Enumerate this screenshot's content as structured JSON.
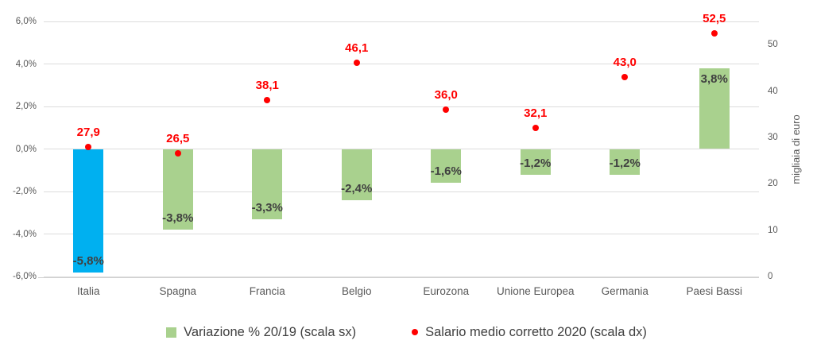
{
  "chart_data": {
    "type": "bar",
    "subtype": "combo-bar-scatter-dual-axis",
    "categories": [
      "Italia",
      "Spagna",
      "Francia",
      "Belgio",
      "Eurozona",
      "Unione Europea",
      "Germania",
      "Paesi Bassi"
    ],
    "series": [
      {
        "name": "Variazione % 20/19 (scala sx)",
        "type": "bar",
        "axis": "left",
        "values": [
          -5.8,
          -3.8,
          -3.3,
          -2.4,
          -1.6,
          -1.2,
          -1.2,
          3.8
        ],
        "labels": [
          "-5,8%",
          "-3,8%",
          "-3,3%",
          "-2,4%",
          "-1,6%",
          "-1,2%",
          "-1,2%",
          "3,8%"
        ],
        "bar_colors": [
          "#00B0F0",
          "#A9D18E",
          "#A9D18E",
          "#A9D18E",
          "#A9D18E",
          "#A9D18E",
          "#A9D18E",
          "#A9D18E"
        ],
        "default_color": "#A9D18E",
        "label_color": "#404040"
      },
      {
        "name": "Salario medio corretto 2020 (scala dx)",
        "type": "scatter",
        "axis": "right",
        "values": [
          27.9,
          26.5,
          38.1,
          46.1,
          36.0,
          32.1,
          43.0,
          52.5
        ],
        "labels": [
          "27,9",
          "26,5",
          "38,1",
          "46,1",
          "36,0",
          "32,1",
          "43,0",
          "52,5"
        ],
        "color": "#FF0000",
        "label_color": "#FF0000"
      }
    ],
    "left_axis": {
      "min": -6,
      "max": 6,
      "step": 2,
      "tick_values": [
        6,
        4,
        2,
        0,
        -2,
        -4,
        -6
      ],
      "tick_labels": [
        "6,0%",
        "4,0%",
        "2,0%",
        "0,0%",
        "-2,0%",
        "-4,0%",
        "-6,0%"
      ]
    },
    "right_axis": {
      "min": 0,
      "max": 55,
      "tick_values": [
        0,
        10,
        20,
        30,
        40,
        50
      ],
      "tick_labels": [
        "0",
        "10",
        "20",
        "30",
        "40",
        "50"
      ],
      "title": "migliaia di euro"
    },
    "grid": true,
    "legend_position": "bottom",
    "colors": {
      "bar_highlight": "#00B0F0",
      "bar_default": "#A9D18E",
      "scatter": "#FF0000",
      "gridline": "#DCDCDC"
    },
    "title": "",
    "xlabel": ""
  },
  "legend": {
    "items": [
      {
        "label": "Variazione % 20/19 (scala sx)",
        "marker": "green-square"
      },
      {
        "label": "Salario medio corretto 2020 (scala dx)",
        "marker": "red-dot"
      }
    ]
  }
}
